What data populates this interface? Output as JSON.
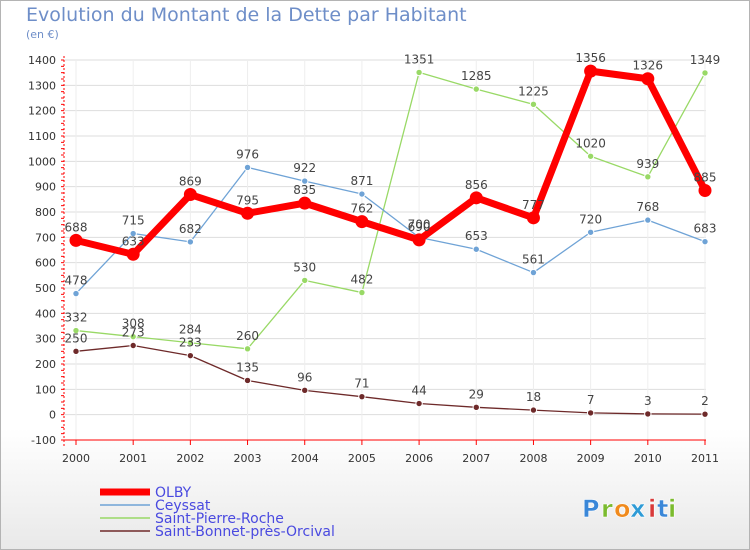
{
  "chart_data": {
    "type": "line",
    "title": "Evolution du Montant de la Dette par Habitant",
    "subtitle": "(en €)",
    "xlabel": "",
    "ylabel": "",
    "x": [
      "2000",
      "2001",
      "2002",
      "2003",
      "2004",
      "2005",
      "2006",
      "2007",
      "2008",
      "2009",
      "2010",
      "2011"
    ],
    "ylim": [
      -100,
      1400
    ],
    "yticks": [
      -100,
      0,
      100,
      200,
      300,
      400,
      500,
      600,
      700,
      800,
      900,
      1000,
      1100,
      1200,
      1300,
      1400
    ],
    "grid": true,
    "legend": "bottom-left",
    "series": [
      {
        "name": "OLBY",
        "color": "#ff0000",
        "values": [
          688,
          633,
          869,
          795,
          835,
          762,
          690,
          856,
          777,
          1356,
          1326,
          885
        ]
      },
      {
        "name": "Ceyssat",
        "color": "#6fa3d6",
        "values": [
          478,
          715,
          682,
          976,
          922,
          871,
          700,
          653,
          561,
          720,
          768,
          683
        ]
      },
      {
        "name": "Saint-Pierre-Roche",
        "color": "#99d966",
        "values": [
          332,
          308,
          284,
          260,
          530,
          482,
          1351,
          1285,
          1225,
          1020,
          939,
          1349
        ]
      },
      {
        "name": "Saint-Bonnet-près-Orcival",
        "color": "#6e2a2a",
        "values": [
          250,
          273,
          233,
          135,
          96,
          71,
          44,
          29,
          18,
          7,
          3,
          2
        ]
      }
    ]
  },
  "brand": {
    "letters": [
      "P",
      "r",
      "o",
      "x",
      "i",
      "t",
      "i"
    ],
    "colors": [
      "#3a87d8",
      "#7bbb2e",
      "#f08a1d",
      "#2e9bd6",
      "#d83a3a",
      "#3a87d8",
      "#7bbb2e"
    ]
  }
}
